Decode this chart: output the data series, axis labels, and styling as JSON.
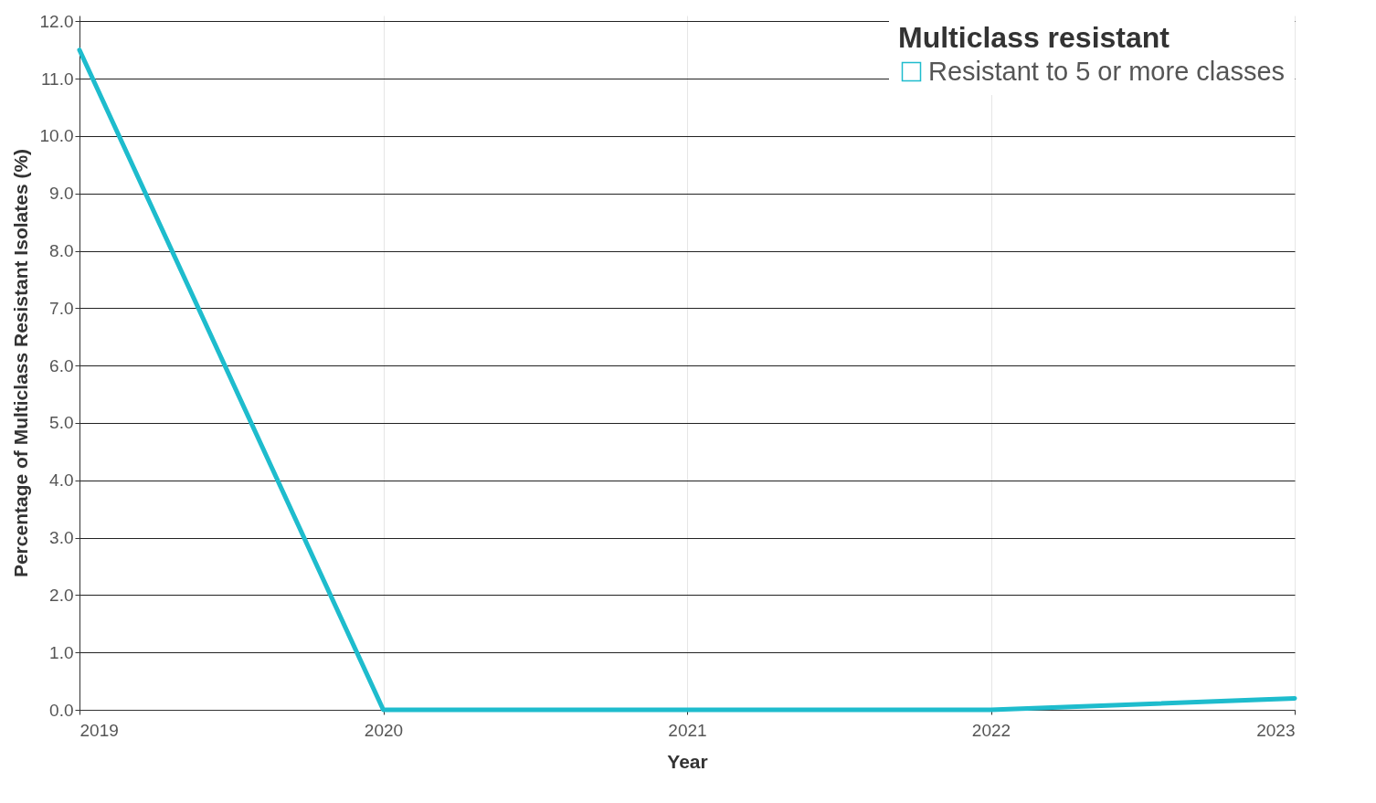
{
  "chart_data": {
    "type": "line",
    "xlabel": "Year",
    "ylabel": "Percentage of Multiclass Resistant Isolates (%)",
    "legend_title": "Multiclass resistant",
    "x": [
      2019,
      2020,
      2021,
      2022,
      2023
    ],
    "series": [
      {
        "name": "Resistant to 5 or more classes",
        "color": "#1ebccd",
        "values": [
          11.5,
          0,
          0,
          0,
          0.2
        ]
      }
    ],
    "xlim": [
      2019,
      2023
    ],
    "xticks": [
      2019,
      2020,
      2021,
      2022,
      2023
    ],
    "ylim": [
      0,
      12.1
    ],
    "yticks": [
      {
        "value": 0,
        "label": "0.0"
      },
      {
        "value": 1,
        "label": "1.0"
      },
      {
        "value": 2,
        "label": "2.0"
      },
      {
        "value": 3,
        "label": "3.0"
      },
      {
        "value": 4,
        "label": "4.0"
      },
      {
        "value": 5,
        "label": "5.0"
      },
      {
        "value": 6,
        "label": "6.0"
      },
      {
        "value": 7,
        "label": "7.0"
      },
      {
        "value": 8,
        "label": "8.0"
      },
      {
        "value": 9,
        "label": "9.0"
      },
      {
        "value": 10,
        "label": "10.0"
      },
      {
        "value": 11,
        "label": "11.0"
      },
      {
        "value": 12,
        "label": "12.0"
      }
    ],
    "grid": true,
    "legend": "top right",
    "marker": "none",
    "line_style": "solid"
  }
}
